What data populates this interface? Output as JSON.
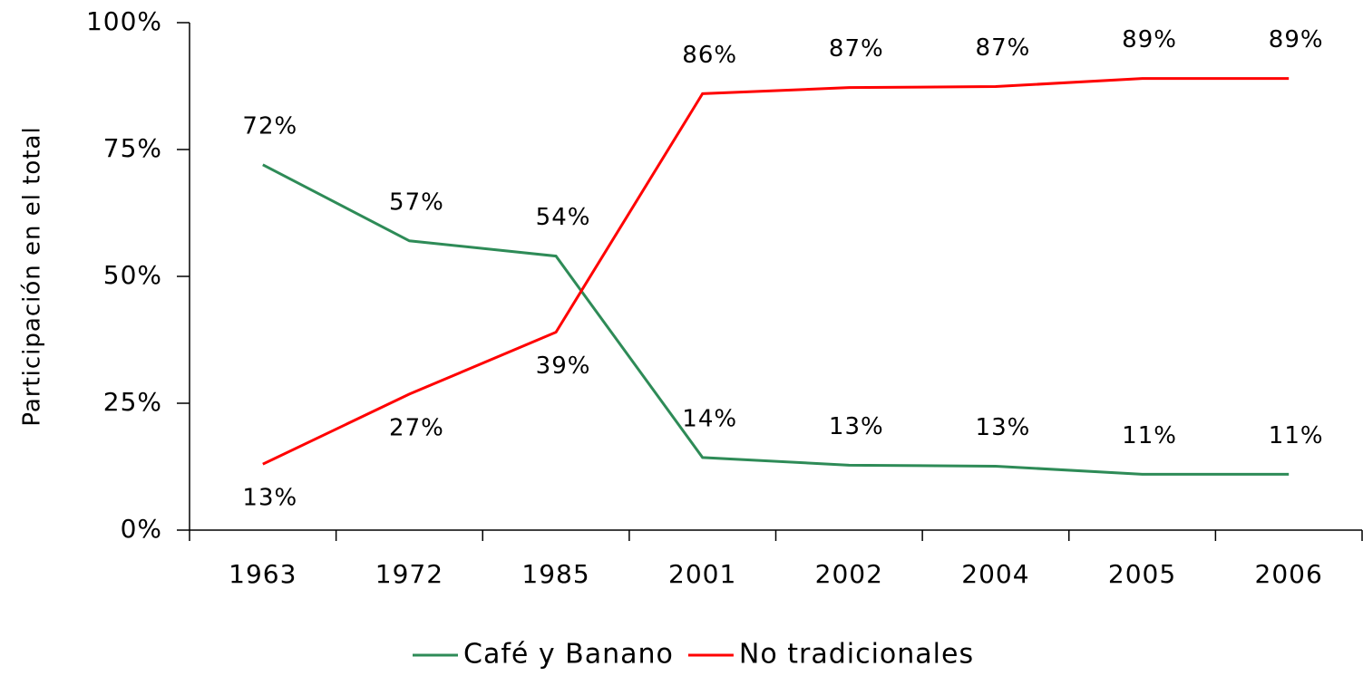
{
  "chart_data": {
    "type": "line",
    "y_label": "Participación en el total",
    "categories": [
      "1963",
      "1972",
      "1985",
      "2001",
      "2002",
      "2004",
      "2005",
      "2006"
    ],
    "series": [
      {
        "name": "Café y Banano",
        "color": "#2e8b57",
        "values": [
          72,
          57,
          54,
          14.3,
          12.8,
          12.6,
          11,
          11
        ],
        "value_labels": [
          "72%",
          "57%",
          "54%",
          "14%",
          "13%",
          "13%",
          "11%",
          "11%"
        ]
      },
      {
        "name": "No tradicionales",
        "color": "#ff0000",
        "values": [
          13,
          26.8,
          39,
          86,
          87.2,
          87.4,
          89,
          89
        ],
        "value_labels": [
          "13%",
          "27%",
          "39%",
          "86%",
          "87%",
          "87%",
          "89%",
          "89%"
        ]
      }
    ],
    "ylim": [
      0,
      100
    ],
    "yticks": [
      {
        "value": 0,
        "label": "0%"
      },
      {
        "value": 25,
        "label": "25%"
      },
      {
        "value": 50,
        "label": "50%"
      },
      {
        "value": 75,
        "label": "75%"
      },
      {
        "value": 100,
        "label": "100%"
      }
    ],
    "grid": false,
    "legend": "bottom"
  }
}
